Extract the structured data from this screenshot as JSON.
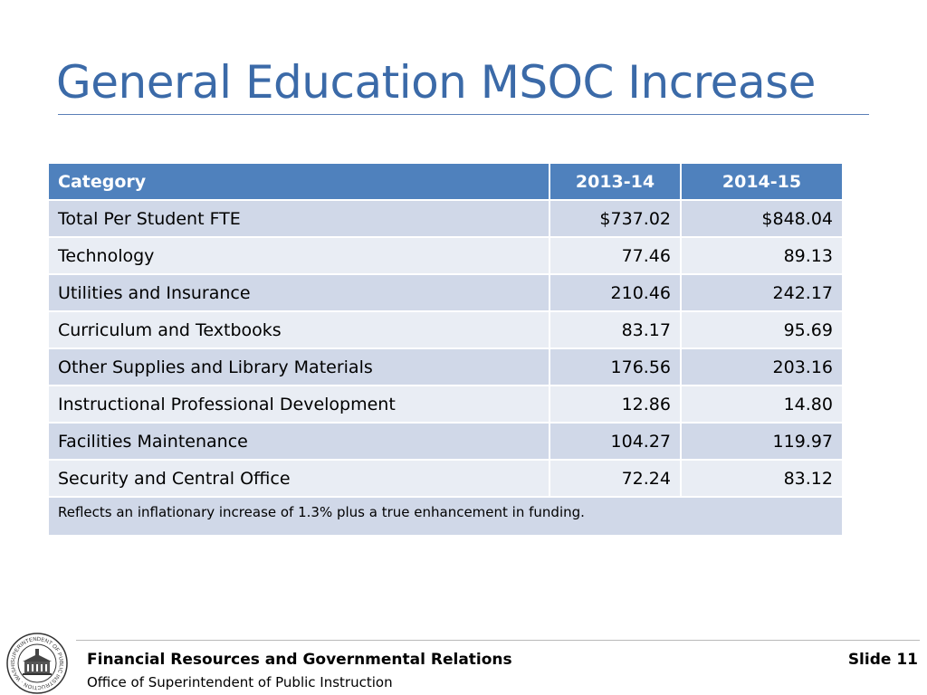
{
  "slide": {
    "title": "General Education MSOC Increase"
  },
  "table": {
    "headers": [
      "Category",
      "2013-14",
      "2014-15"
    ],
    "rows": [
      {
        "category": "Total Per Student FTE",
        "y2013_14": "$737.02",
        "y2014_15": "$848.04"
      },
      {
        "category": "Technology",
        "y2013_14": "77.46",
        "y2014_15": "89.13"
      },
      {
        "category": "Utilities and Insurance",
        "y2013_14": "210.46",
        "y2014_15": "242.17"
      },
      {
        "category": "Curriculum and Textbooks",
        "y2013_14": "83.17",
        "y2014_15": "95.69"
      },
      {
        "category": "Other Supplies and Library Materials",
        "y2013_14": "176.56",
        "y2014_15": "203.16"
      },
      {
        "category": "Instructional Professional Development",
        "y2013_14": "12.86",
        "y2014_15": "14.80"
      },
      {
        "category": "Facilities Maintenance",
        "y2013_14": "104.27",
        "y2014_15": "119.97"
      },
      {
        "category": "Security and Central Office",
        "y2013_14": "72.24",
        "y2014_15": "83.12"
      }
    ],
    "note": "Reflects an inflationary increase of 1.3% plus a true enhancement in funding."
  },
  "footer": {
    "organization": "Financial Resources and Governmental Relations",
    "office": "Office of Superintendent of Public Instruction",
    "slide_label": "Slide 11",
    "seal_icon": "ospi-seal-icon",
    "seal_text": "SUPERINTENDENT OF PUBLIC INSTRUCTION · WASHINGTON ·"
  },
  "colors": {
    "title": "#3b6aa8",
    "header_bg": "#4f81bd",
    "row_dark": "#d0d8e8",
    "row_light": "#e9edf4"
  }
}
